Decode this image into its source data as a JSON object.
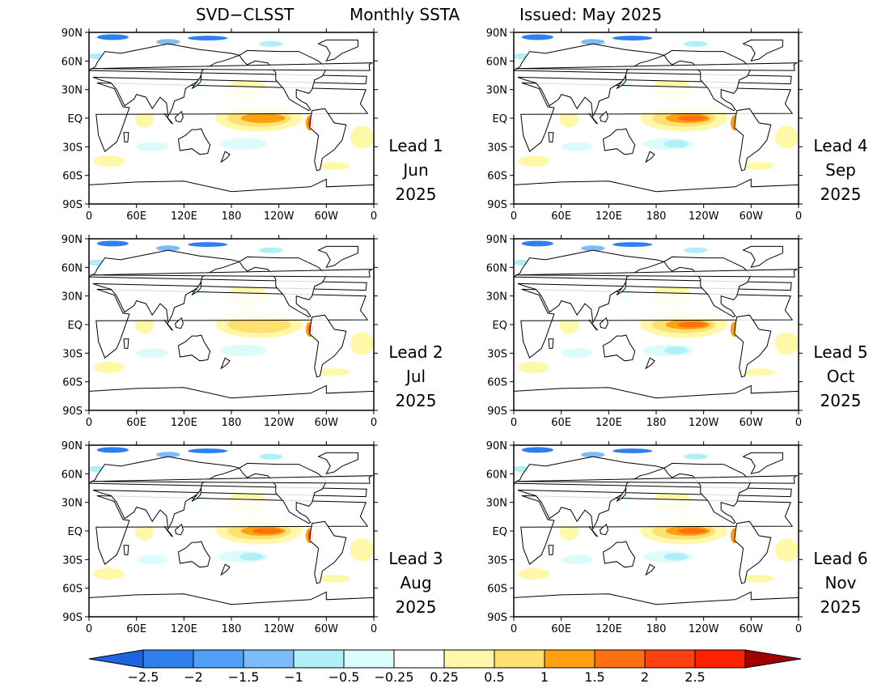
{
  "header": {
    "model": "SVD−CLSST",
    "product": "Monthly SSTA",
    "issued": "Issued: May 2025"
  },
  "axes": {
    "lat_ticks": [
      "90N",
      "60N",
      "30N",
      "EQ",
      "30S",
      "60S",
      "90S"
    ],
    "lon_ticks": [
      "0",
      "60E",
      "120E",
      "180",
      "120W",
      "60W",
      "0"
    ]
  },
  "panels": [
    {
      "lead": "Lead 1",
      "month": "Jun",
      "year": "2025",
      "nino_strength": 1.3,
      "coast_warm": 1.6
    },
    {
      "lead": "Lead 2",
      "month": "Jul",
      "year": "2025",
      "nino_strength": 1.1,
      "coast_warm": 1.4
    },
    {
      "lead": "Lead 3",
      "month": "Aug",
      "year": "2025",
      "nino_strength": 1.6,
      "coast_warm": 1.3
    },
    {
      "lead": "Lead 4",
      "month": "Sep",
      "year": "2025",
      "nino_strength": 1.75,
      "coast_warm": 0.9
    },
    {
      "lead": "Lead 5",
      "month": "Oct",
      "year": "2025",
      "nino_strength": 1.7,
      "coast_warm": 0.8
    },
    {
      "lead": "Lead 6",
      "month": "Nov",
      "year": "2025",
      "nino_strength": 1.6,
      "coast_warm": 0.7
    }
  ],
  "colorbar": {
    "labels": [
      "−2.5",
      "−2",
      "−1.5",
      "−1",
      "−0.5",
      "−0.25",
      "0.25",
      "0.5",
      "1",
      "1.5",
      "2",
      "2.5"
    ],
    "colors": [
      "#1e64e0",
      "#2f80ee",
      "#4fa0f6",
      "#7cbcf8",
      "#b0eef8",
      "#dcfcfc",
      "#ffffff",
      "#fff8a8",
      "#ffe070",
      "#ffa010",
      "#ff7010",
      "#ff4010",
      "#ff2000",
      "#a00000"
    ]
  }
}
